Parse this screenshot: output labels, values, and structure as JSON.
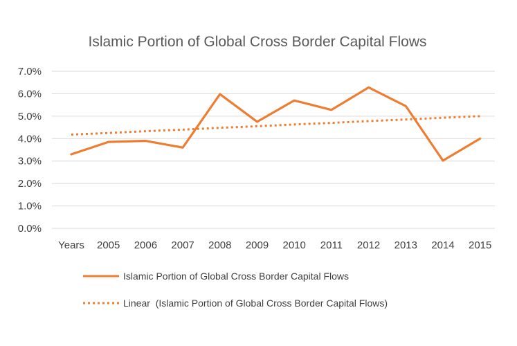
{
  "chart_data": {
    "type": "line",
    "title": "Islamic Portion of Global Cross Border Capital Flows",
    "xlabel": "",
    "ylabel": "",
    "categories": [
      "Years",
      "2005",
      "2006",
      "2007",
      "2008",
      "2009",
      "2010",
      "2011",
      "2012",
      "2013",
      "2014",
      "2015"
    ],
    "y_ticks": [
      "0.0%",
      "1.0%",
      "2.0%",
      "3.0%",
      "4.0%",
      "5.0%",
      "6.0%",
      "7.0%"
    ],
    "ylim": [
      0,
      0.07
    ],
    "grid": true,
    "legend_position": "bottom",
    "series": [
      {
        "name": "Islamic Portion of Global Cross Border Capital Flows",
        "style": "solid",
        "color": "#ed7d31",
        "values": [
          0.033,
          0.0385,
          0.039,
          0.036,
          0.0598,
          0.0475,
          0.057,
          0.0528,
          0.0628,
          0.0545,
          0.0302,
          0.04
        ]
      },
      {
        "name": "Linear  (Islamic Portion of Global Cross Border Capital Flows)",
        "style": "dotted",
        "color": "#ed7d31",
        "values": [
          0.0418,
          0.0425,
          0.0433,
          0.044,
          0.0448,
          0.0455,
          0.0463,
          0.047,
          0.0478,
          0.0485,
          0.0493,
          0.05
        ]
      }
    ]
  }
}
